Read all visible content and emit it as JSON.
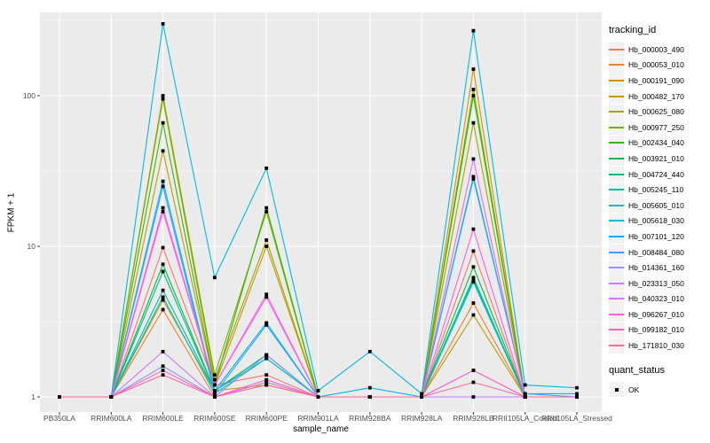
{
  "colors": {
    "panel_bg": "#EBEBEB",
    "grid": "#FFFFFF",
    "axis_text": "#4D4D4D",
    "tick_mark": "#333333",
    "legend_key_bg": "#F2F2F2",
    "point": "#000000"
  },
  "chart_data": {
    "type": "line",
    "xlabel": "sample_name",
    "ylabel": "FPKM + 1",
    "x_scale": "categorical",
    "y_scale": "log10",
    "ylim": [
      0.9,
      330
    ],
    "y_ticks": [
      1,
      10,
      100
    ],
    "y_tick_labels": [
      "1",
      "10",
      "100"
    ],
    "y_minor_ticks": [
      3.1623,
      31.623,
      316.23
    ],
    "grid": "white major+minor gridlines on gray panel",
    "legend_position": "right",
    "point_marker": "small black square at every data point (quant_status = OK)",
    "legend": {
      "color_title": "tracking_id",
      "shape_title": "quant_status",
      "shape_entries": [
        {
          "label": "OK",
          "marker": "black-square"
        }
      ]
    },
    "categories": [
      "PB350LA",
      "RRIM600LA",
      "RRIM600LE",
      "RRIM600SE",
      "RRIM600PE",
      "RRIM901LA",
      "RRIM928BA",
      "RRIM928LA",
      "RRIM928LB",
      "RRII105LA_Control",
      "RRII105LA_Stressed"
    ],
    "series": [
      {
        "name": "Hb_000003_490",
        "color": "#F8766D",
        "values": [
          1,
          1,
          9.8,
          1.2,
          1.4,
          1,
          1,
          1,
          9.3,
          1,
          1
        ]
      },
      {
        "name": "Hb_000053_010",
        "color": "#EA8331",
        "values": [
          1,
          1,
          3.8,
          1,
          1.25,
          1,
          1,
          1,
          4.2,
          1,
          1
        ]
      },
      {
        "name": "Hb_000191_090",
        "color": "#D89000",
        "values": [
          1,
          1,
          4.4,
          1.1,
          1.2,
          1,
          1,
          1,
          150,
          1,
          1
        ]
      },
      {
        "name": "Hb_000482_170",
        "color": "#C09B00",
        "values": [
          1,
          1,
          43,
          1.2,
          10,
          1,
          1,
          1,
          3.5,
          1,
          1
        ]
      },
      {
        "name": "Hb_000625_080",
        "color": "#A3A500",
        "values": [
          1,
          1,
          95,
          1.3,
          11,
          1,
          1,
          1,
          66,
          1,
          1
        ]
      },
      {
        "name": "Hb_000977_250",
        "color": "#7CAE00",
        "values": [
          1,
          1,
          100,
          1.4,
          17,
          1,
          1,
          1,
          110,
          1,
          1
        ]
      },
      {
        "name": "Hb_002434_040",
        "color": "#39B600",
        "values": [
          1,
          1,
          66,
          1.2,
          18,
          1,
          1,
          1,
          100,
          1,
          1
        ]
      },
      {
        "name": "Hb_003921_010",
        "color": "#00BB4E",
        "values": [
          1,
          1,
          7.6,
          1.1,
          1.9,
          1,
          1,
          1,
          7.3,
          1,
          1
        ]
      },
      {
        "name": "Hb_004724_440",
        "color": "#00BF7D",
        "values": [
          1,
          1,
          6.8,
          1.1,
          1.9,
          1,
          1,
          1,
          6.2,
          1,
          1
        ]
      },
      {
        "name": "Hb_005245_110",
        "color": "#00C1A3",
        "values": [
          1,
          1,
          5.1,
          1.1,
          1.8,
          1,
          1,
          1,
          6.0,
          1,
          1
        ]
      },
      {
        "name": "Hb_005605_010",
        "color": "#00BFC4",
        "values": [
          1,
          1,
          4.6,
          1.05,
          1.8,
          1,
          1,
          1,
          5.8,
          1,
          1
        ]
      },
      {
        "name": "Hb_005618_030",
        "color": "#00BAE0",
        "values": [
          1,
          1,
          300,
          6.2,
          33,
          1.1,
          2.0,
          1.05,
          270,
          1.2,
          1.15
        ]
      },
      {
        "name": "Hb_007101_120",
        "color": "#00B0F6",
        "values": [
          1,
          1,
          27,
          1.1,
          3.1,
          1,
          1.15,
          1,
          29,
          1.05,
          1.05
        ]
      },
      {
        "name": "Hb_008484_080",
        "color": "#35A2FF",
        "values": [
          1,
          1,
          25,
          1.05,
          3.0,
          1,
          1,
          1,
          28,
          1.05,
          1
        ]
      },
      {
        "name": "Hb_014361_160",
        "color": "#9590FF",
        "values": [
          1,
          1,
          1.6,
          1,
          1.9,
          1,
          1,
          1,
          1.5,
          1,
          1
        ]
      },
      {
        "name": "Hb_023313_050",
        "color": "#C77CFF",
        "values": [
          1,
          1,
          2.0,
          1,
          1.25,
          1,
          1,
          1,
          1.0,
          1,
          1
        ]
      },
      {
        "name": "Hb_040323_010",
        "color": "#E76BF3",
        "values": [
          1,
          1,
          18,
          1.2,
          4.8,
          1,
          1,
          1,
          38,
          1,
          1
        ]
      },
      {
        "name": "Hb_096267_010",
        "color": "#FA62DB",
        "values": [
          1,
          1,
          17,
          1.2,
          4.6,
          1,
          1,
          1,
          13,
          1,
          1
        ]
      },
      {
        "name": "Hb_099182_010",
        "color": "#FF62BC",
        "values": [
          1,
          1,
          1.5,
          1,
          1.3,
          1,
          1,
          1,
          1.5,
          1,
          1
        ]
      },
      {
        "name": "Hb_171810_030",
        "color": "#FF6A98",
        "values": [
          1,
          1,
          1.4,
          1,
          1.2,
          1,
          1,
          1,
          1.25,
          1,
          1
        ]
      }
    ]
  }
}
